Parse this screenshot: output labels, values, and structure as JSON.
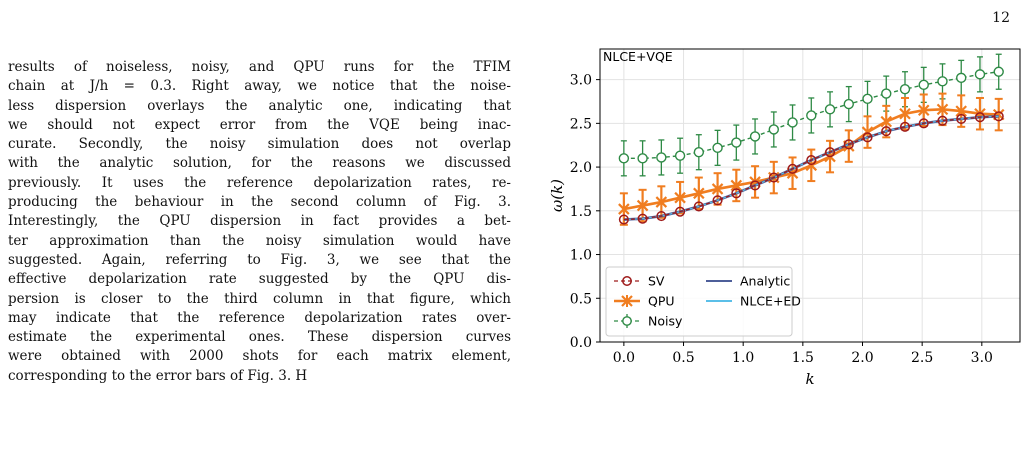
{
  "page_number": "12",
  "body_lines": [
    "results of noiseless, noisy, and QPU runs for the TFIM",
    "chain at J/h = 0.3. Right away, we notice that the noise-",
    "less dispersion overlays the analytic one, indicating that",
    "we should not expect error from the VQE being inac-",
    "curate. Secondly, the noisy simulation does not overlap",
    "with the analytic solution, for the reasons we discussed",
    "previously. It uses the reference depolarization rates, re-",
    "producing the behaviour in the second column of Fig. 3.",
    "Interestingly, the QPU dispersion in fact provides a bet-",
    "ter approximation than the noisy simulation would have",
    "suggested. Again, referring to Fig. 3, we see that the",
    "effective depolarization rate suggested by the QPU dis-",
    "persion is closer to the third column in that figure, which",
    "may indicate that the reference depolarization rates over-",
    "estimate the experimental ones. These dispersion curves",
    "were obtained with 2000 shots for each matrix element,",
    "corresponding to the error bars of Fig. 3. H"
  ],
  "chart_data": {
    "type": "line",
    "panel_label": "NLCE+VQE",
    "xlabel": "k",
    "ylabel": "ω(k)",
    "xlim": [
      -0.2,
      3.32
    ],
    "ylim": [
      0.0,
      3.35
    ],
    "xticks": [
      0.0,
      0.5,
      1.0,
      1.5,
      2.0,
      2.5,
      3.0
    ],
    "yticks": [
      0.0,
      0.5,
      1.0,
      1.5,
      2.0,
      2.5,
      3.0
    ],
    "xtick_labels": [
      "0.0",
      "0.5",
      "1.0",
      "1.5",
      "2.0",
      "2.5",
      "3.0"
    ],
    "ytick_labels": [
      "0.0",
      "0.5",
      "1.0",
      "1.5",
      "2.0",
      "2.5",
      "3.0"
    ],
    "grid": true,
    "legend_placement": "lower-left",
    "x": [
      0.0,
      0.1571,
      0.3142,
      0.4712,
      0.6283,
      0.7854,
      0.9425,
      1.0996,
      1.2566,
      1.4137,
      1.5708,
      1.7279,
      1.885,
      2.042,
      2.1991,
      2.3562,
      2.5133,
      2.6704,
      2.8274,
      2.9845,
      3.1416
    ],
    "series": [
      {
        "name": "SV",
        "color": "#9e1a1a",
        "style": "dashed-open-circle",
        "values": [
          1.4,
          1.41,
          1.44,
          1.49,
          1.55,
          1.62,
          1.7,
          1.79,
          1.88,
          1.98,
          2.08,
          2.17,
          2.26,
          2.34,
          2.41,
          2.46,
          2.5,
          2.53,
          2.55,
          2.57,
          2.58
        ]
      },
      {
        "name": "QPU",
        "color": "#f07d20",
        "style": "solid-x",
        "err": 0.18,
        "values": [
          1.52,
          1.56,
          1.6,
          1.65,
          1.7,
          1.75,
          1.79,
          1.83,
          1.88,
          1.93,
          2.02,
          2.12,
          2.24,
          2.4,
          2.52,
          2.61,
          2.65,
          2.66,
          2.64,
          2.61,
          2.6
        ]
      },
      {
        "name": "Noisy",
        "color": "#2e8a45",
        "style": "dashed-crossed-circle",
        "err": 0.2,
        "values": [
          2.1,
          2.1,
          2.11,
          2.13,
          2.17,
          2.22,
          2.28,
          2.35,
          2.43,
          2.51,
          2.59,
          2.66,
          2.72,
          2.78,
          2.84,
          2.89,
          2.94,
          2.98,
          3.02,
          3.06,
          3.09
        ]
      },
      {
        "name": "Analytic",
        "color": "#4e5f9a",
        "style": "solid",
        "values": [
          1.4,
          1.41,
          1.44,
          1.49,
          1.55,
          1.62,
          1.7,
          1.79,
          1.88,
          1.98,
          2.08,
          2.17,
          2.26,
          2.34,
          2.41,
          2.46,
          2.5,
          2.53,
          2.55,
          2.57,
          2.58
        ]
      },
      {
        "name": "NLCE+ED",
        "color": "#5bbfe8",
        "style": "solid",
        "values": [
          1.4,
          1.41,
          1.44,
          1.49,
          1.55,
          1.62,
          1.7,
          1.79,
          1.88,
          1.98,
          2.08,
          2.17,
          2.26,
          2.34,
          2.41,
          2.46,
          2.5,
          2.53,
          2.55,
          2.57,
          2.58
        ]
      }
    ]
  }
}
